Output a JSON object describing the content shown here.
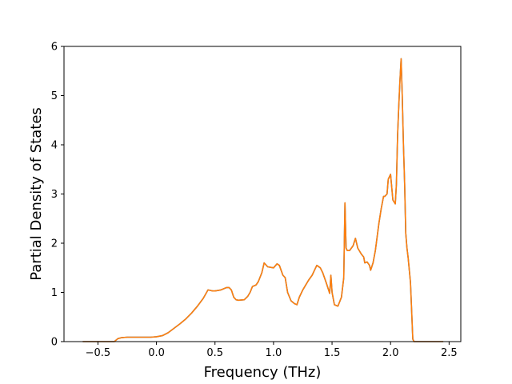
{
  "chart_data": {
    "type": "line",
    "title": "",
    "xlabel": "Frequency (THz)",
    "ylabel": "Partial Density of States",
    "xlim": [
      -0.79,
      2.6
    ],
    "ylim": [
      0,
      6
    ],
    "xticks": [
      -0.5,
      0.0,
      0.5,
      1.0,
      1.5,
      2.0,
      2.5
    ],
    "xtick_labels": [
      "−0.5",
      "0.0",
      "0.5",
      "1.0",
      "1.5",
      "2.0",
      "2.5"
    ],
    "yticks": [
      0,
      1,
      2,
      3,
      4,
      5,
      6
    ],
    "ytick_labels": [
      "0",
      "1",
      "2",
      "3",
      "4",
      "5",
      "6"
    ],
    "grid": false,
    "legend": "none",
    "series": [
      {
        "color": "#1f77b4",
        "x": [
          -0.63,
          -0.36,
          -0.33,
          -0.3,
          -0.25,
          -0.2,
          -0.15,
          -0.1,
          -0.05,
          0.0,
          0.05,
          0.1,
          0.15,
          0.2,
          0.25,
          0.3,
          0.35,
          0.4,
          0.44,
          0.46,
          0.48,
          0.5,
          0.55,
          0.58,
          0.6,
          0.62,
          0.64,
          0.66,
          0.68,
          0.7,
          0.75,
          0.78,
          0.8,
          0.82,
          0.85,
          0.87,
          0.9,
          0.92,
          0.95,
          1.0,
          1.03,
          1.05,
          1.08,
          1.1,
          1.12,
          1.15,
          1.18,
          1.2,
          1.22,
          1.25,
          1.3,
          1.33,
          1.35,
          1.37,
          1.4,
          1.42,
          1.45,
          1.47,
          1.48,
          1.49,
          1.5,
          1.52,
          1.55,
          1.58,
          1.6,
          1.61,
          1.62,
          1.63,
          1.65,
          1.68,
          1.7,
          1.72,
          1.75,
          1.77,
          1.78,
          1.8,
          1.82,
          1.83,
          1.85,
          1.87,
          1.9,
          1.92,
          1.94,
          1.95,
          1.97,
          1.98,
          2.0,
          2.02,
          2.04,
          2.05,
          2.06,
          2.07,
          2.08,
          2.09,
          2.1,
          2.11,
          2.12,
          2.13,
          2.14,
          2.15,
          2.17,
          2.19,
          2.2,
          2.22,
          2.45
        ],
        "y": [
          0.0,
          0.0,
          0.06,
          0.08,
          0.09,
          0.09,
          0.09,
          0.09,
          0.09,
          0.1,
          0.12,
          0.18,
          0.27,
          0.36,
          0.46,
          0.58,
          0.72,
          0.88,
          1.05,
          1.04,
          1.03,
          1.03,
          1.05,
          1.08,
          1.1,
          1.1,
          1.05,
          0.9,
          0.85,
          0.84,
          0.85,
          0.92,
          1.0,
          1.12,
          1.15,
          1.22,
          1.4,
          1.6,
          1.52,
          1.5,
          1.58,
          1.55,
          1.35,
          1.3,
          1.0,
          0.83,
          0.77,
          0.75,
          0.9,
          1.05,
          1.25,
          1.35,
          1.45,
          1.55,
          1.5,
          1.4,
          1.2,
          1.05,
          0.98,
          1.35,
          1.0,
          0.75,
          0.72,
          0.9,
          1.3,
          2.82,
          1.9,
          1.85,
          1.85,
          1.95,
          2.1,
          1.9,
          1.78,
          1.72,
          1.6,
          1.62,
          1.55,
          1.45,
          1.6,
          1.85,
          2.4,
          2.7,
          2.95,
          2.95,
          3.0,
          3.3,
          3.4,
          2.88,
          2.8,
          3.2,
          4.2,
          4.8,
          5.3,
          5.75,
          5.0,
          4.0,
          3.2,
          2.2,
          1.9,
          1.7,
          1.2,
          0.05,
          0.0,
          0.0,
          0.0
        ]
      },
      {
        "color": "#ff7f0e",
        "x": [
          -0.63,
          -0.36,
          -0.33,
          -0.3,
          -0.25,
          -0.2,
          -0.15,
          -0.1,
          -0.05,
          0.0,
          0.05,
          0.1,
          0.15,
          0.2,
          0.25,
          0.3,
          0.35,
          0.4,
          0.44,
          0.46,
          0.48,
          0.5,
          0.55,
          0.58,
          0.6,
          0.62,
          0.64,
          0.66,
          0.68,
          0.7,
          0.75,
          0.78,
          0.8,
          0.82,
          0.85,
          0.87,
          0.9,
          0.92,
          0.95,
          1.0,
          1.03,
          1.05,
          1.08,
          1.1,
          1.12,
          1.15,
          1.18,
          1.2,
          1.22,
          1.25,
          1.3,
          1.33,
          1.35,
          1.37,
          1.4,
          1.42,
          1.45,
          1.47,
          1.48,
          1.49,
          1.5,
          1.52,
          1.55,
          1.58,
          1.6,
          1.61,
          1.62,
          1.63,
          1.65,
          1.68,
          1.7,
          1.72,
          1.75,
          1.77,
          1.78,
          1.8,
          1.82,
          1.83,
          1.85,
          1.87,
          1.9,
          1.92,
          1.94,
          1.95,
          1.97,
          1.98,
          2.0,
          2.02,
          2.04,
          2.05,
          2.06,
          2.07,
          2.08,
          2.09,
          2.1,
          2.11,
          2.12,
          2.13,
          2.14,
          2.15,
          2.17,
          2.19,
          2.2,
          2.22,
          2.45
        ],
        "y": [
          0.0,
          0.0,
          0.06,
          0.08,
          0.09,
          0.09,
          0.09,
          0.09,
          0.09,
          0.1,
          0.12,
          0.18,
          0.27,
          0.36,
          0.46,
          0.58,
          0.72,
          0.88,
          1.05,
          1.04,
          1.03,
          1.03,
          1.05,
          1.08,
          1.1,
          1.1,
          1.05,
          0.9,
          0.85,
          0.84,
          0.85,
          0.92,
          1.0,
          1.12,
          1.15,
          1.22,
          1.4,
          1.6,
          1.52,
          1.5,
          1.58,
          1.55,
          1.35,
          1.3,
          1.0,
          0.83,
          0.77,
          0.75,
          0.9,
          1.05,
          1.25,
          1.35,
          1.45,
          1.55,
          1.5,
          1.4,
          1.2,
          1.05,
          0.98,
          1.35,
          1.0,
          0.75,
          0.72,
          0.9,
          1.3,
          2.82,
          1.9,
          1.85,
          1.85,
          1.95,
          2.1,
          1.9,
          1.78,
          1.72,
          1.6,
          1.62,
          1.55,
          1.45,
          1.6,
          1.85,
          2.4,
          2.7,
          2.95,
          2.95,
          3.0,
          3.3,
          3.4,
          2.88,
          2.8,
          3.2,
          4.2,
          4.8,
          5.3,
          5.75,
          5.0,
          4.0,
          3.2,
          2.2,
          1.9,
          1.7,
          1.2,
          0.05,
          0.0,
          0.0,
          0.0
        ]
      }
    ]
  }
}
